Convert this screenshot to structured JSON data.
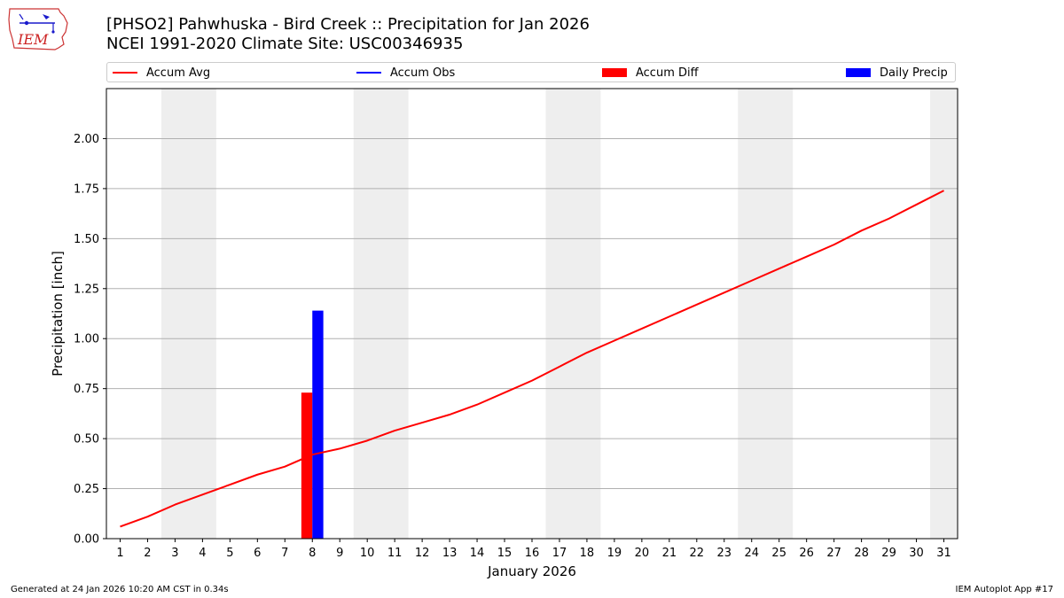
{
  "header": {
    "title_line1": "[PHSO2] Pahwhuska - Bird Creek :: Precipitation for Jan 2026",
    "title_line2": "NCEI 1991-2020 Climate Site: USC00346935",
    "logo_text": "IEM"
  },
  "legend": {
    "accum_avg": "Accum Avg",
    "accum_obs": "Accum Obs",
    "accum_diff": "Accum Diff",
    "daily_precip": "Daily Precip"
  },
  "colors": {
    "accum_avg": "#ff0000",
    "accum_obs": "#0000ff",
    "accum_diff": "#ff0000",
    "daily_precip": "#0000ff",
    "weekend_shade": "#eeeeee",
    "grid": "#b0b0b0"
  },
  "footer": {
    "generated": "Generated at 24 Jan 2026 10:20 AM CST in 0.34s",
    "app": "IEM Autoplot App #17"
  },
  "chart_data": {
    "type": "line",
    "xlabel": "January 2026",
    "ylabel": "Precipitation [inch]",
    "xlim": [
      0.5,
      31.5
    ],
    "ylim": [
      0,
      2.25
    ],
    "y_ticks": [
      0.0,
      0.25,
      0.5,
      0.75,
      1.0,
      1.25,
      1.5,
      1.75,
      2.0
    ],
    "y_tick_labels": [
      "0.00",
      "0.25",
      "0.50",
      "0.75",
      "1.00",
      "1.25",
      "1.50",
      "1.75",
      "2.00"
    ],
    "x_ticks": [
      1,
      2,
      3,
      4,
      5,
      6,
      7,
      8,
      9,
      10,
      11,
      12,
      13,
      14,
      15,
      16,
      17,
      18,
      19,
      20,
      21,
      22,
      23,
      24,
      25,
      26,
      27,
      28,
      29,
      30,
      31
    ],
    "grid": "y",
    "weekend_spans": [
      [
        2.5,
        4.5
      ],
      [
        9.5,
        11.5
      ],
      [
        16.5,
        18.5
      ],
      [
        23.5,
        25.5
      ],
      [
        30.5,
        31.5
      ]
    ],
    "series": [
      {
        "name": "Accum Avg",
        "kind": "line",
        "x": [
          1,
          2,
          3,
          4,
          5,
          6,
          7,
          8,
          9,
          10,
          11,
          12,
          13,
          14,
          15,
          16,
          17,
          18,
          19,
          20,
          21,
          22,
          23,
          24,
          25,
          26,
          27,
          28,
          29,
          30,
          31
        ],
        "values": [
          0.06,
          0.11,
          0.17,
          0.22,
          0.27,
          0.32,
          0.36,
          0.42,
          0.45,
          0.49,
          0.54,
          0.58,
          0.62,
          0.67,
          0.73,
          0.79,
          0.86,
          0.93,
          0.99,
          1.05,
          1.11,
          1.17,
          1.23,
          1.29,
          1.35,
          1.41,
          1.47,
          1.54,
          1.6,
          1.67,
          1.74
        ]
      },
      {
        "name": "Accum Diff",
        "kind": "bar",
        "x": [
          8
        ],
        "values": [
          0.73
        ]
      },
      {
        "name": "Daily Precip",
        "kind": "bar",
        "x": [
          8
        ],
        "values": [
          1.14
        ]
      }
    ]
  }
}
